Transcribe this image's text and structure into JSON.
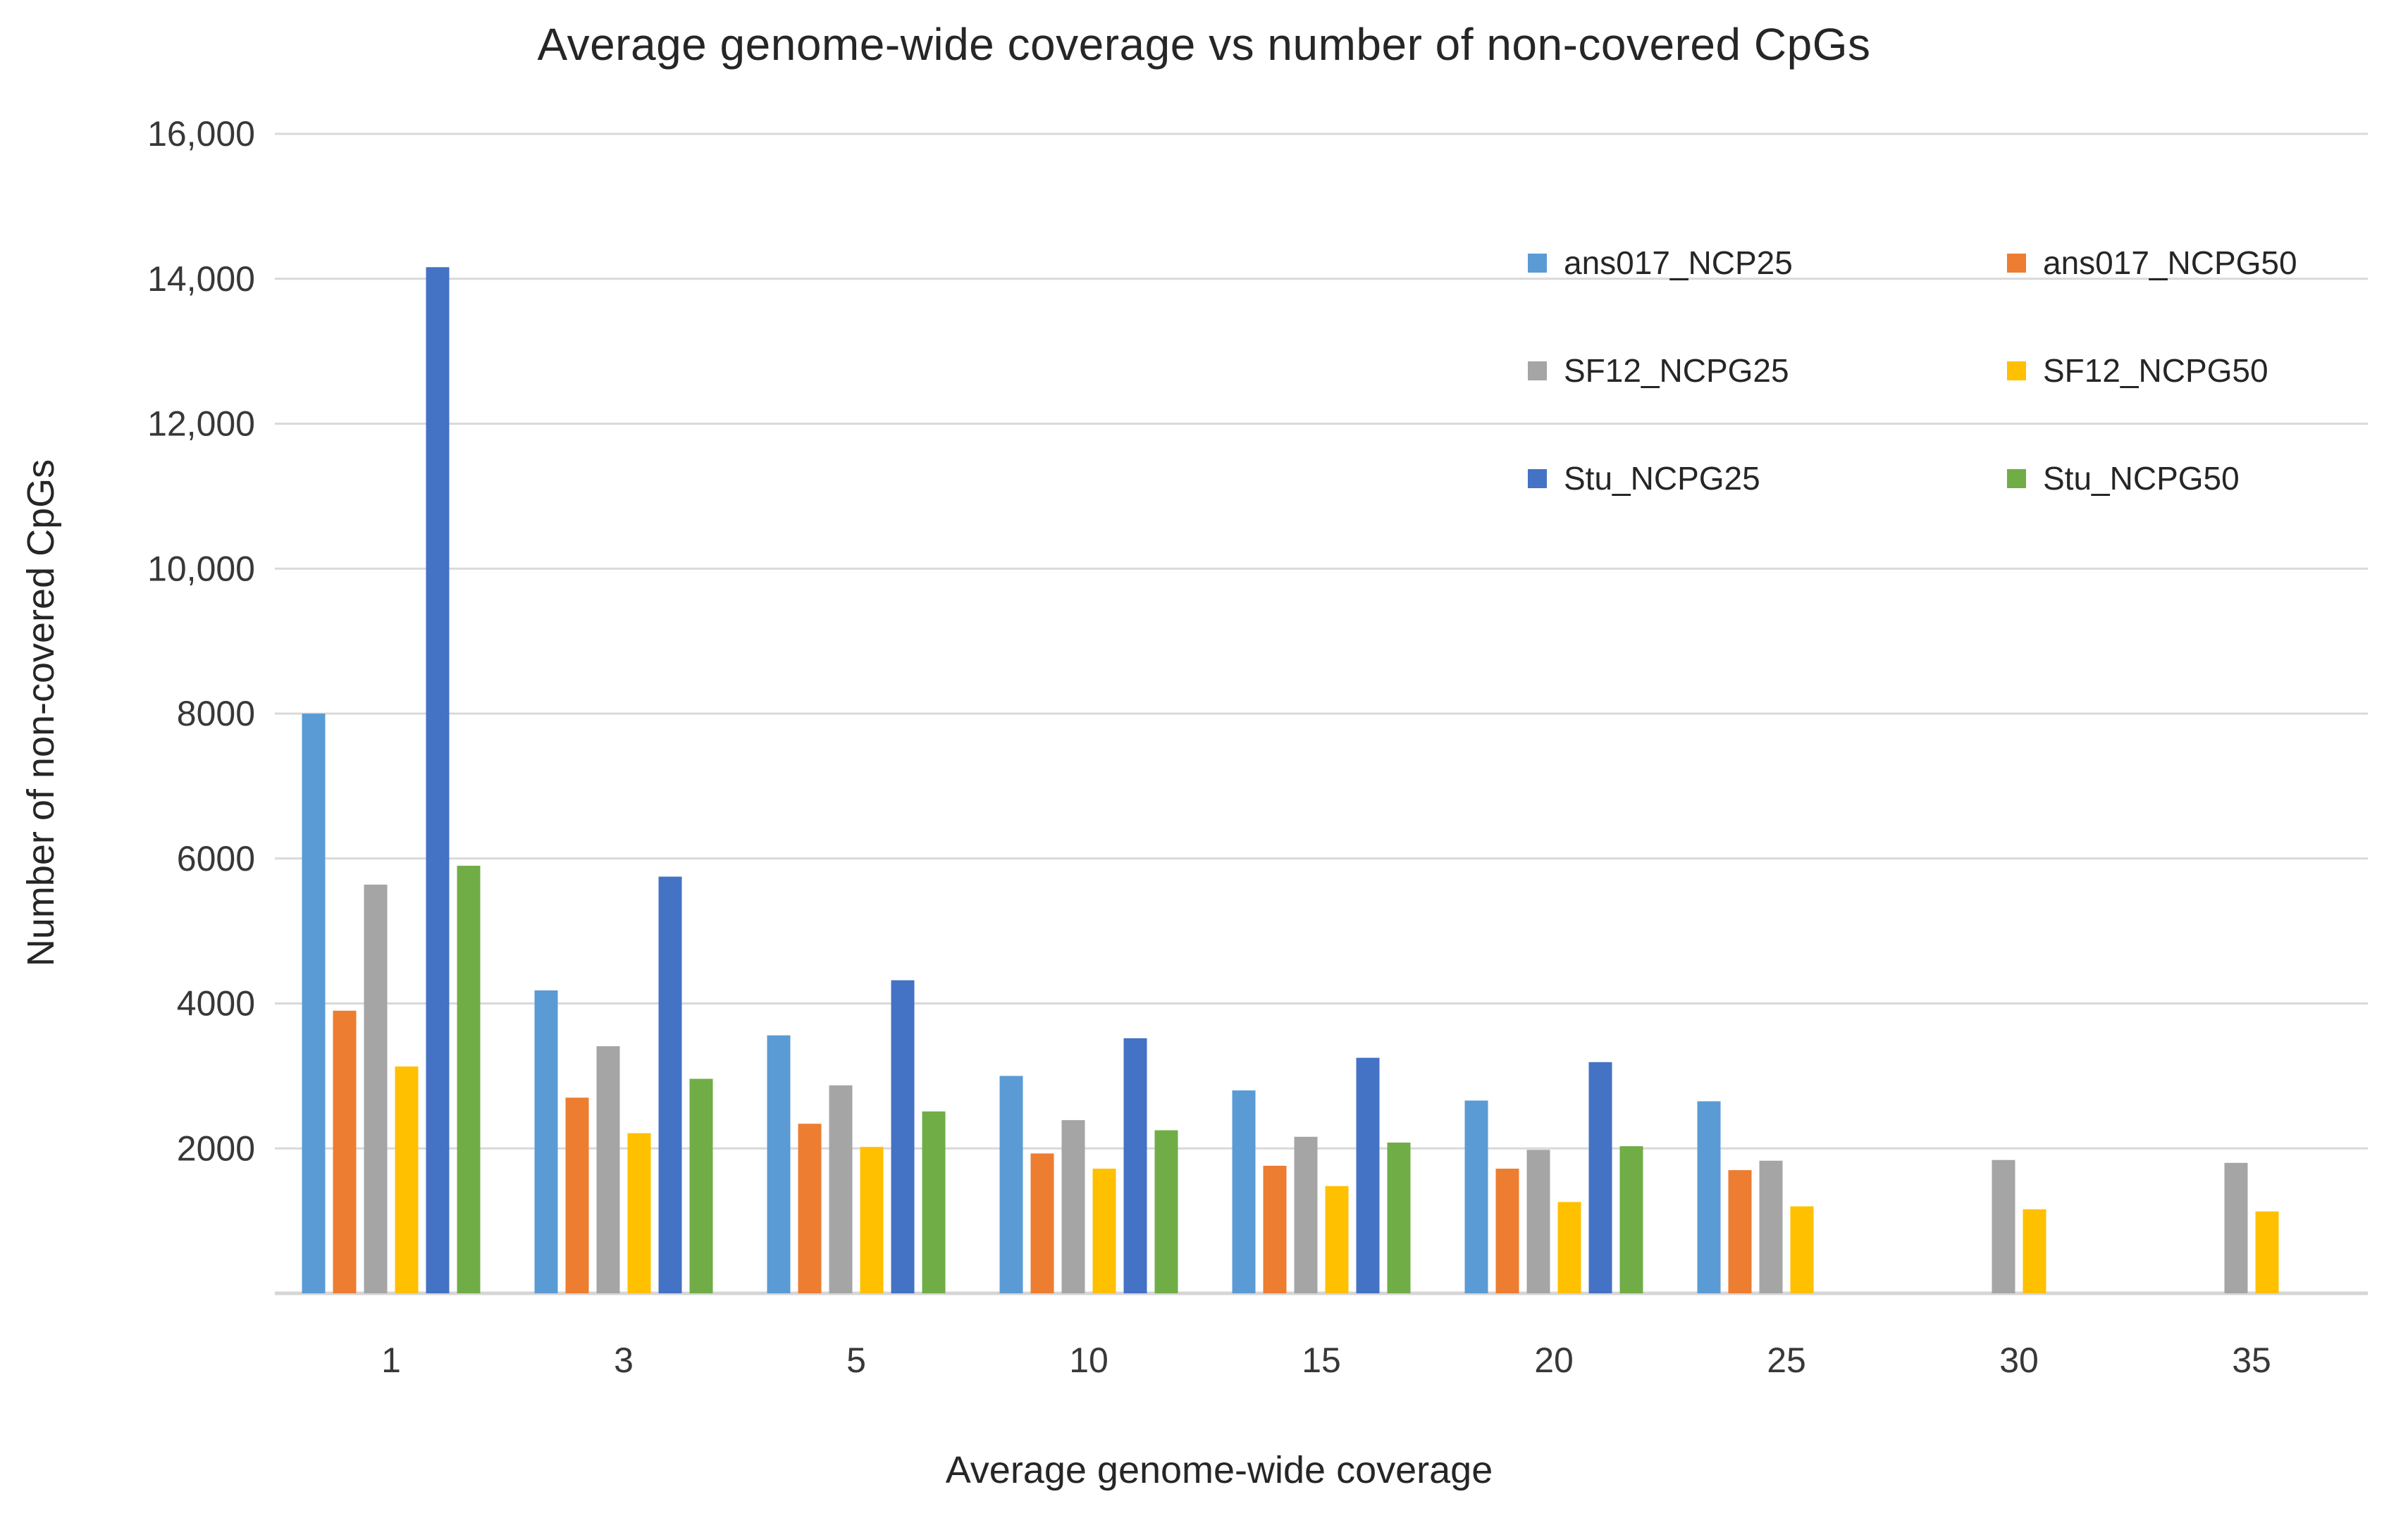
{
  "chart_data": {
    "type": "bar",
    "title": "Average genome-wide coverage vs number of non-covered CpGs",
    "xlabel": "Average genome-wide coverage",
    "ylabel": "Number of non-covered CpGs",
    "categories": [
      "1",
      "3",
      "5",
      "10",
      "15",
      "20",
      "25",
      "30",
      "35"
    ],
    "ylim": [
      0,
      16000
    ],
    "grid": true,
    "legend_position": "top-right-inside-two-columns",
    "gridline_color": "#d9d9d9",
    "baseline_color": "#d6d6d6",
    "y_ticks": [
      {
        "value": 16000,
        "label": "16,000"
      },
      {
        "value": 14000,
        "label": "14,000"
      },
      {
        "value": 12000,
        "label": "12,000"
      },
      {
        "value": 10000,
        "label": "10,000"
      },
      {
        "value": 8000,
        "label": "8000"
      },
      {
        "value": 6000,
        "label": "6000"
      },
      {
        "value": 4000,
        "label": "4000"
      },
      {
        "value": 2000,
        "label": "2000"
      }
    ],
    "series": [
      {
        "name": "ans017_NCP25",
        "color": "#5B9BD5",
        "values": [
          8000,
          4180,
          3560,
          3000,
          2800,
          2660,
          2650,
          null,
          null
        ]
      },
      {
        "name": "ans017_NCPG50",
        "color": "#ED7D31",
        "values": [
          3900,
          2700,
          2340,
          1930,
          1760,
          1720,
          1700,
          null,
          null
        ]
      },
      {
        "name": "SF12_NCPG25",
        "color": "#A5A5A5",
        "values": [
          5640,
          3410,
          2870,
          2390,
          2160,
          1980,
          1830,
          1840,
          1800
        ]
      },
      {
        "name": "SF12_NCPG50",
        "color": "#FFC000",
        "values": [
          3130,
          2210,
          2020,
          1720,
          1480,
          1260,
          1200,
          1160,
          1130
        ]
      },
      {
        "name": "Stu_NCPG25",
        "color": "#4472C4",
        "values": [
          14160,
          5750,
          4320,
          3520,
          3250,
          3190,
          null,
          null,
          null
        ]
      },
      {
        "name": "Stu_NCPG50",
        "color": "#70AD47",
        "values": [
          5900,
          2960,
          2510,
          2250,
          2080,
          2030,
          null,
          null,
          null
        ]
      }
    ]
  }
}
